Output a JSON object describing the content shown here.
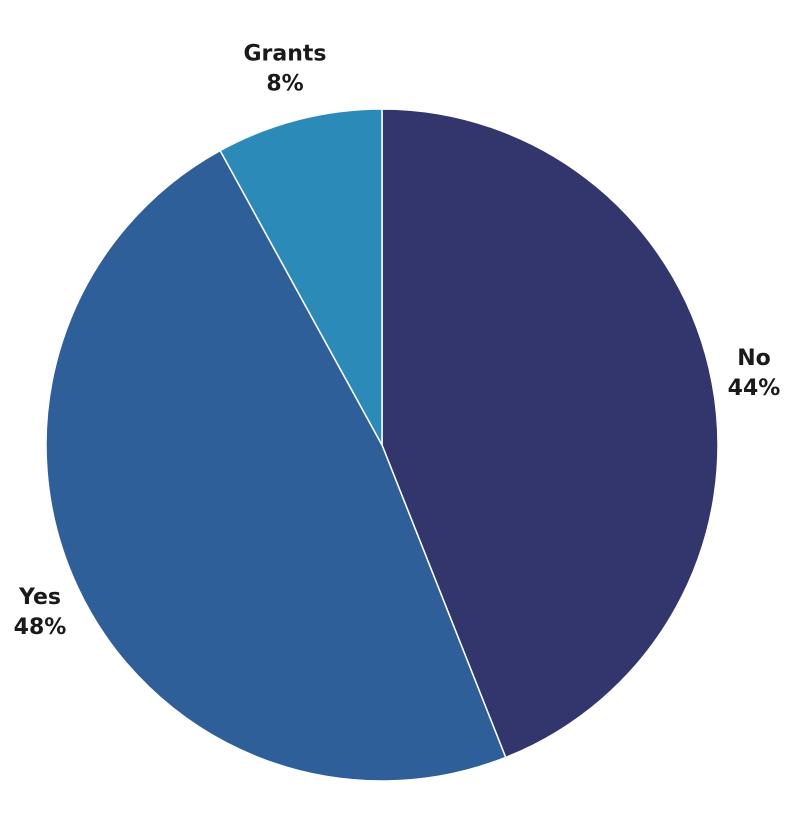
{
  "chart_data": {
    "type": "pie",
    "title": "",
    "slices": [
      {
        "label": "No",
        "value": 44,
        "display": "44%",
        "color": "#32366c"
      },
      {
        "label": "Yes",
        "value": 48,
        "display": "48%",
        "color": "#2f5f98"
      },
      {
        "label": "Grants",
        "value": 8,
        "display": "8%",
        "color": "#2c8ab9"
      }
    ],
    "start_angle_deg": 0,
    "direction": "clockwise",
    "legend": "none",
    "labels_position": "outside"
  }
}
